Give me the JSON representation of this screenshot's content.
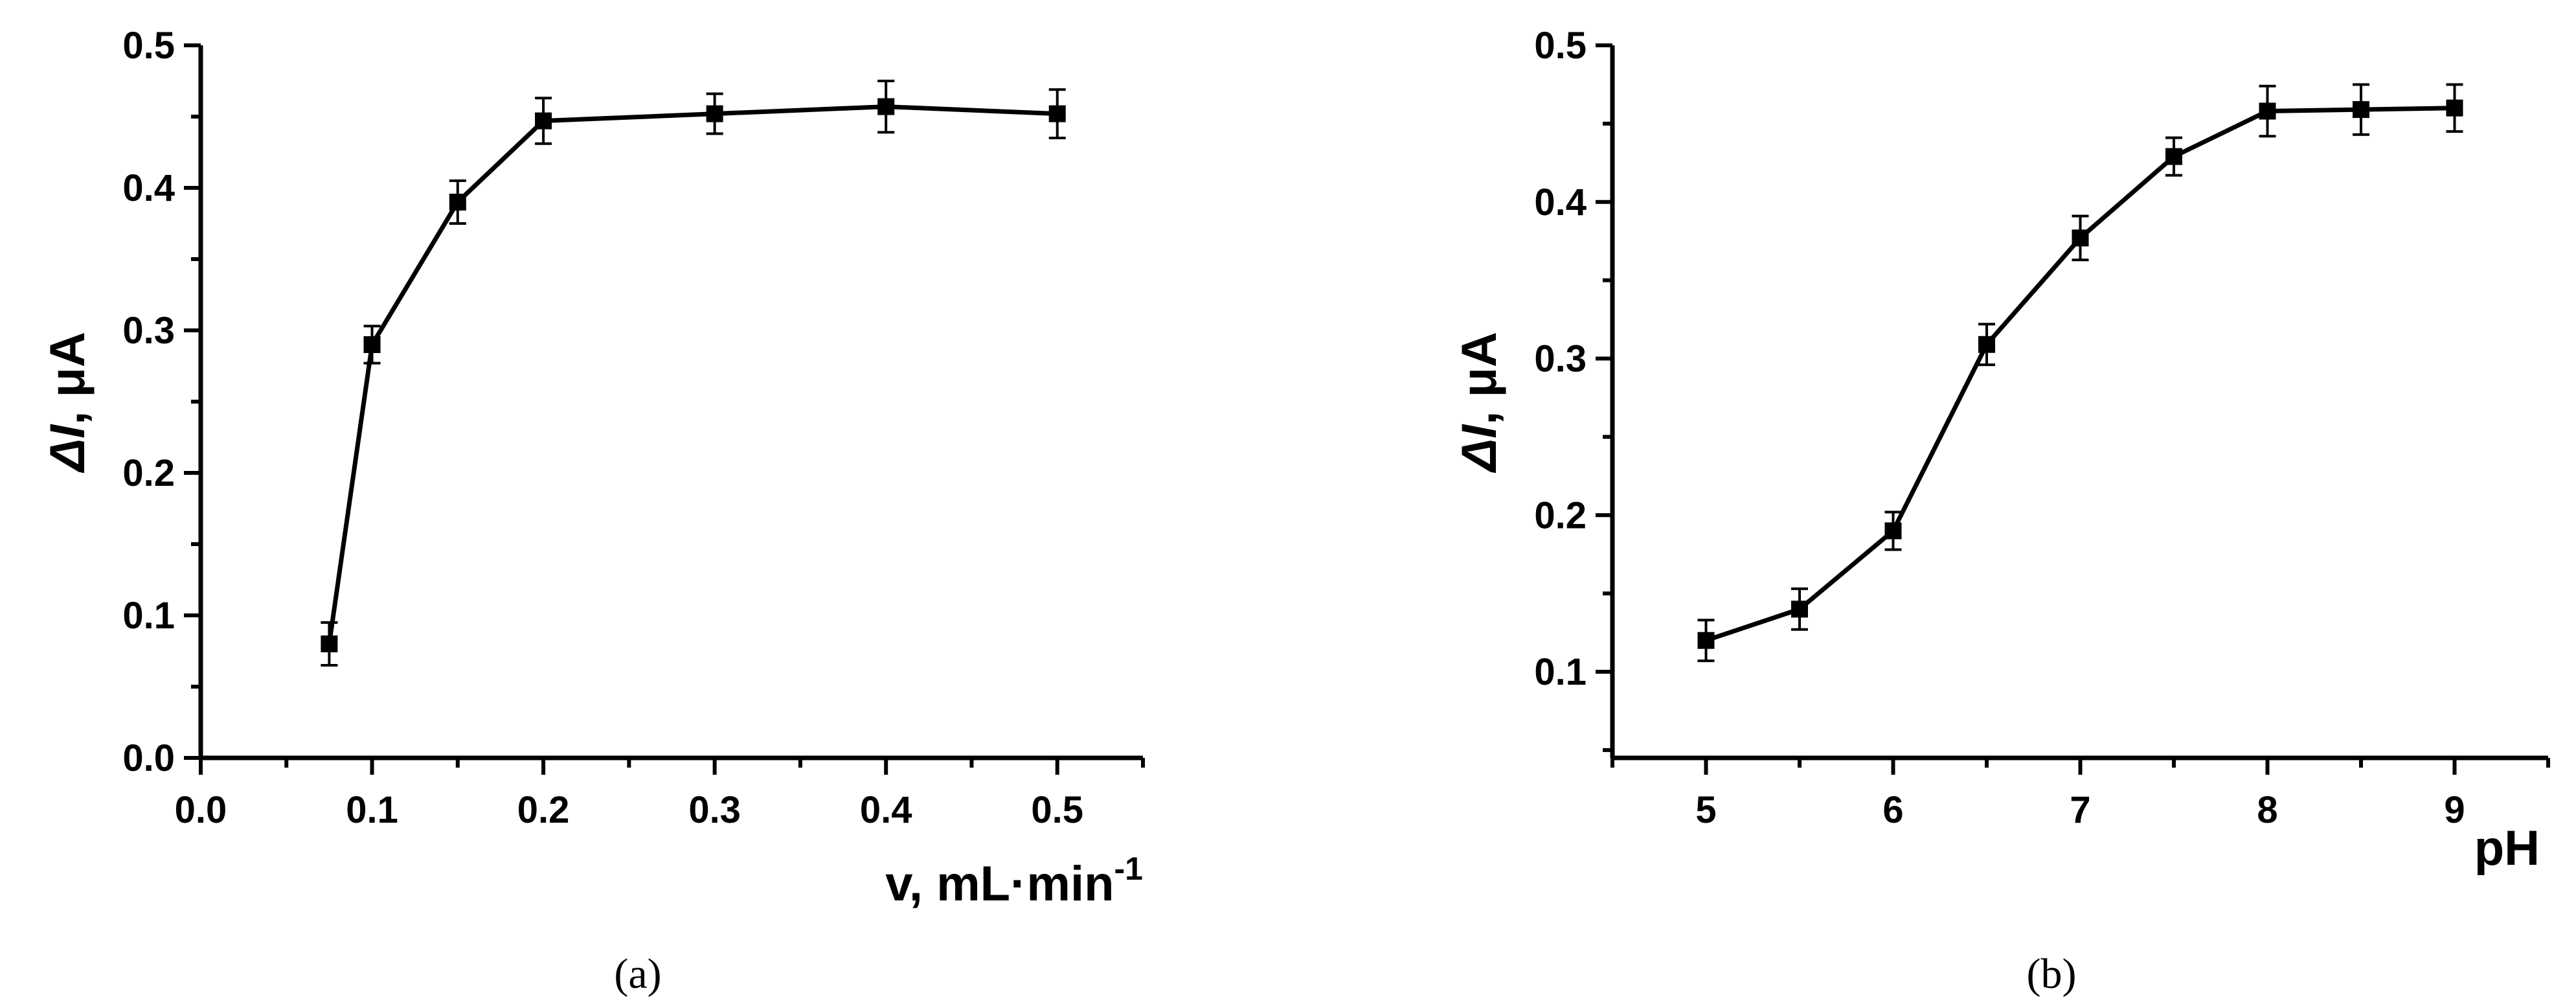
{
  "chart_data": [
    {
      "type": "line",
      "panel_label": "(a)",
      "title": "",
      "xlabel": "v, mL·min",
      "xlabel_sup": "-1",
      "ylabel_symbol": "ΔI",
      "ylabel_rest": ", μA",
      "xlim": [
        0.0,
        0.55
      ],
      "ylim": [
        0.0,
        0.5
      ],
      "x_ticks": [
        0.0,
        0.1,
        0.2,
        0.3,
        0.4,
        0.5
      ],
      "x_tick_labels": [
        "0.0",
        "0.1",
        "0.2",
        "0.3",
        "0.4",
        "0.5"
      ],
      "y_ticks": [
        0.0,
        0.1,
        0.2,
        0.3,
        0.4,
        0.5
      ],
      "y_tick_labels": [
        "0.0",
        "0.1",
        "0.2",
        "0.3",
        "0.4",
        "0.5"
      ],
      "grid": false,
      "series": [
        {
          "x": [
            0.075,
            0.1,
            0.15,
            0.2,
            0.3,
            0.4,
            0.5
          ],
          "y": [
            0.08,
            0.29,
            0.39,
            0.447,
            0.452,
            0.457,
            0.452
          ],
          "error": [
            0.015,
            0.013,
            0.015,
            0.016,
            0.014,
            0.018,
            0.017
          ]
        }
      ]
    },
    {
      "type": "line",
      "panel_label": "(b)",
      "title": "",
      "xlabel": "pH",
      "xlabel_sup": "",
      "ylabel_symbol": "ΔI",
      "ylabel_rest": ", μA",
      "xlim": [
        4.5,
        9.5
      ],
      "ylim": [
        0.045,
        0.5
      ],
      "x_ticks": [
        5,
        6,
        7,
        8,
        9
      ],
      "x_tick_labels": [
        "5",
        "6",
        "7",
        "8",
        "9"
      ],
      "y_ticks": [
        0.1,
        0.2,
        0.3,
        0.4,
        0.5
      ],
      "y_tick_labels": [
        "0.1",
        "0.2",
        "0.3",
        "0.4",
        "0.5"
      ],
      "grid": false,
      "series": [
        {
          "x": [
            5,
            5.5,
            6,
            6.5,
            7,
            7.5,
            8,
            8.5,
            9
          ],
          "y": [
            0.12,
            0.14,
            0.19,
            0.309,
            0.377,
            0.429,
            0.458,
            0.459,
            0.46
          ],
          "error": [
            0.013,
            0.013,
            0.012,
            0.013,
            0.014,
            0.012,
            0.016,
            0.016,
            0.015
          ]
        }
      ]
    }
  ]
}
